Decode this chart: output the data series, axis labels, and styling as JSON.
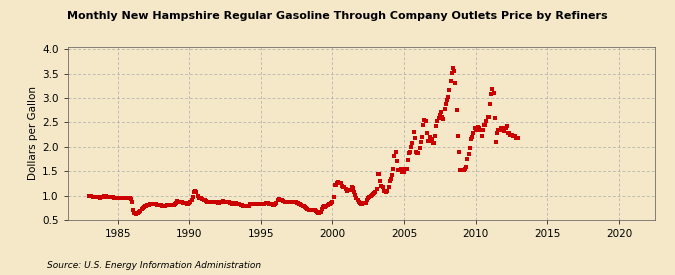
{
  "title": "Monthly New Hampshire Regular Gasoline Through Company Outlets Price by Refiners",
  "ylabel": "Dollars per Gallon",
  "source": "Source: U.S. Energy Information Administration",
  "background_color": "#f5e8c8",
  "marker_color": "#cc0000",
  "xlim": [
    1981.5,
    2022.5
  ],
  "ylim": [
    0.5,
    4.05
  ],
  "xticks": [
    1985,
    1990,
    1995,
    2000,
    2005,
    2010,
    2015,
    2020
  ],
  "yticks": [
    0.5,
    1.0,
    1.5,
    2.0,
    2.5,
    3.0,
    3.5,
    4.0
  ],
  "data": [
    [
      1983.0,
      1.0
    ],
    [
      1983.08,
      0.99
    ],
    [
      1983.17,
      0.99
    ],
    [
      1983.25,
      0.98
    ],
    [
      1983.33,
      0.98
    ],
    [
      1983.42,
      0.97
    ],
    [
      1983.5,
      0.97
    ],
    [
      1983.58,
      0.97
    ],
    [
      1983.67,
      0.97
    ],
    [
      1983.75,
      0.96
    ],
    [
      1983.83,
      0.97
    ],
    [
      1983.92,
      0.98
    ],
    [
      1984.0,
      0.98
    ],
    [
      1984.08,
      0.99
    ],
    [
      1984.17,
      0.99
    ],
    [
      1984.25,
      0.98
    ],
    [
      1984.33,
      0.97
    ],
    [
      1984.42,
      0.97
    ],
    [
      1984.5,
      0.97
    ],
    [
      1984.58,
      0.97
    ],
    [
      1984.67,
      0.97
    ],
    [
      1984.75,
      0.96
    ],
    [
      1984.83,
      0.96
    ],
    [
      1984.92,
      0.96
    ],
    [
      1985.0,
      0.96
    ],
    [
      1985.08,
      0.96
    ],
    [
      1985.17,
      0.96
    ],
    [
      1985.25,
      0.95
    ],
    [
      1985.33,
      0.96
    ],
    [
      1985.42,
      0.96
    ],
    [
      1985.5,
      0.96
    ],
    [
      1985.58,
      0.96
    ],
    [
      1985.67,
      0.95
    ],
    [
      1985.75,
      0.95
    ],
    [
      1985.83,
      0.95
    ],
    [
      1985.92,
      0.94
    ],
    [
      1986.0,
      0.86
    ],
    [
      1986.08,
      0.71
    ],
    [
      1986.17,
      0.65
    ],
    [
      1986.25,
      0.63
    ],
    [
      1986.33,
      0.64
    ],
    [
      1986.42,
      0.65
    ],
    [
      1986.5,
      0.67
    ],
    [
      1986.58,
      0.69
    ],
    [
      1986.67,
      0.72
    ],
    [
      1986.75,
      0.74
    ],
    [
      1986.83,
      0.76
    ],
    [
      1986.92,
      0.78
    ],
    [
      1987.0,
      0.78
    ],
    [
      1987.08,
      0.8
    ],
    [
      1987.17,
      0.81
    ],
    [
      1987.25,
      0.82
    ],
    [
      1987.33,
      0.82
    ],
    [
      1987.42,
      0.83
    ],
    [
      1987.5,
      0.82
    ],
    [
      1987.58,
      0.82
    ],
    [
      1987.67,
      0.82
    ],
    [
      1987.75,
      0.81
    ],
    [
      1987.83,
      0.81
    ],
    [
      1987.92,
      0.81
    ],
    [
      1988.0,
      0.8
    ],
    [
      1988.08,
      0.79
    ],
    [
      1988.17,
      0.79
    ],
    [
      1988.25,
      0.79
    ],
    [
      1988.33,
      0.79
    ],
    [
      1988.42,
      0.8
    ],
    [
      1988.5,
      0.8
    ],
    [
      1988.58,
      0.8
    ],
    [
      1988.67,
      0.8
    ],
    [
      1988.75,
      0.8
    ],
    [
      1988.83,
      0.8
    ],
    [
      1988.92,
      0.8
    ],
    [
      1989.0,
      0.82
    ],
    [
      1989.08,
      0.84
    ],
    [
      1989.17,
      0.88
    ],
    [
      1989.25,
      0.87
    ],
    [
      1989.33,
      0.87
    ],
    [
      1989.42,
      0.87
    ],
    [
      1989.5,
      0.86
    ],
    [
      1989.58,
      0.85
    ],
    [
      1989.67,
      0.84
    ],
    [
      1989.75,
      0.84
    ],
    [
      1989.83,
      0.83
    ],
    [
      1989.92,
      0.83
    ],
    [
      1990.0,
      0.84
    ],
    [
      1990.08,
      0.87
    ],
    [
      1990.17,
      0.92
    ],
    [
      1990.25,
      0.97
    ],
    [
      1990.33,
      1.08
    ],
    [
      1990.42,
      1.1
    ],
    [
      1990.5,
      1.07
    ],
    [
      1990.58,
      0.99
    ],
    [
      1990.67,
      0.96
    ],
    [
      1990.75,
      0.96
    ],
    [
      1990.83,
      0.95
    ],
    [
      1990.92,
      0.94
    ],
    [
      1991.0,
      0.91
    ],
    [
      1991.08,
      0.9
    ],
    [
      1991.17,
      0.88
    ],
    [
      1991.25,
      0.87
    ],
    [
      1991.33,
      0.87
    ],
    [
      1991.42,
      0.87
    ],
    [
      1991.5,
      0.87
    ],
    [
      1991.58,
      0.87
    ],
    [
      1991.67,
      0.87
    ],
    [
      1991.75,
      0.87
    ],
    [
      1991.83,
      0.87
    ],
    [
      1991.92,
      0.86
    ],
    [
      1992.0,
      0.85
    ],
    [
      1992.08,
      0.85
    ],
    [
      1992.17,
      0.86
    ],
    [
      1992.25,
      0.87
    ],
    [
      1992.33,
      0.88
    ],
    [
      1992.42,
      0.87
    ],
    [
      1992.5,
      0.87
    ],
    [
      1992.58,
      0.86
    ],
    [
      1992.67,
      0.86
    ],
    [
      1992.75,
      0.86
    ],
    [
      1992.83,
      0.85
    ],
    [
      1992.92,
      0.84
    ],
    [
      1993.0,
      0.83
    ],
    [
      1993.08,
      0.83
    ],
    [
      1993.17,
      0.84
    ],
    [
      1993.25,
      0.84
    ],
    [
      1993.33,
      0.83
    ],
    [
      1993.42,
      0.82
    ],
    [
      1993.5,
      0.82
    ],
    [
      1993.58,
      0.81
    ],
    [
      1993.67,
      0.8
    ],
    [
      1993.75,
      0.79
    ],
    [
      1993.83,
      0.79
    ],
    [
      1993.92,
      0.79
    ],
    [
      1994.0,
      0.79
    ],
    [
      1994.08,
      0.78
    ],
    [
      1994.17,
      0.79
    ],
    [
      1994.25,
      0.82
    ],
    [
      1994.33,
      0.82
    ],
    [
      1994.42,
      0.82
    ],
    [
      1994.5,
      0.82
    ],
    [
      1994.58,
      0.82
    ],
    [
      1994.67,
      0.82
    ],
    [
      1994.75,
      0.82
    ],
    [
      1994.83,
      0.82
    ],
    [
      1994.92,
      0.82
    ],
    [
      1995.0,
      0.82
    ],
    [
      1995.08,
      0.82
    ],
    [
      1995.17,
      0.82
    ],
    [
      1995.25,
      0.83
    ],
    [
      1995.33,
      0.84
    ],
    [
      1995.42,
      0.84
    ],
    [
      1995.5,
      0.84
    ],
    [
      1995.58,
      0.83
    ],
    [
      1995.67,
      0.82
    ],
    [
      1995.75,
      0.82
    ],
    [
      1995.83,
      0.81
    ],
    [
      1995.92,
      0.8
    ],
    [
      1996.0,
      0.82
    ],
    [
      1996.08,
      0.85
    ],
    [
      1996.17,
      0.9
    ],
    [
      1996.25,
      0.93
    ],
    [
      1996.33,
      0.92
    ],
    [
      1996.42,
      0.91
    ],
    [
      1996.5,
      0.9
    ],
    [
      1996.58,
      0.88
    ],
    [
      1996.67,
      0.87
    ],
    [
      1996.75,
      0.86
    ],
    [
      1996.83,
      0.86
    ],
    [
      1996.92,
      0.86
    ],
    [
      1997.0,
      0.86
    ],
    [
      1997.08,
      0.86
    ],
    [
      1997.17,
      0.86
    ],
    [
      1997.25,
      0.87
    ],
    [
      1997.33,
      0.86
    ],
    [
      1997.42,
      0.86
    ],
    [
      1997.5,
      0.85
    ],
    [
      1997.58,
      0.84
    ],
    [
      1997.67,
      0.83
    ],
    [
      1997.75,
      0.82
    ],
    [
      1997.83,
      0.81
    ],
    [
      1997.92,
      0.79
    ],
    [
      1998.0,
      0.78
    ],
    [
      1998.08,
      0.76
    ],
    [
      1998.17,
      0.74
    ],
    [
      1998.25,
      0.72
    ],
    [
      1998.33,
      0.7
    ],
    [
      1998.42,
      0.71
    ],
    [
      1998.5,
      0.71
    ],
    [
      1998.58,
      0.71
    ],
    [
      1998.67,
      0.7
    ],
    [
      1998.75,
      0.7
    ],
    [
      1998.83,
      0.68
    ],
    [
      1998.92,
      0.66
    ],
    [
      1999.0,
      0.65
    ],
    [
      1999.08,
      0.64
    ],
    [
      1999.17,
      0.67
    ],
    [
      1999.25,
      0.73
    ],
    [
      1999.33,
      0.77
    ],
    [
      1999.42,
      0.78
    ],
    [
      1999.5,
      0.77
    ],
    [
      1999.58,
      0.78
    ],
    [
      1999.67,
      0.8
    ],
    [
      1999.75,
      0.83
    ],
    [
      1999.83,
      0.83
    ],
    [
      1999.92,
      0.84
    ],
    [
      2000.0,
      0.87
    ],
    [
      2000.08,
      0.98
    ],
    [
      2000.17,
      1.22
    ],
    [
      2000.25,
      1.22
    ],
    [
      2000.33,
      1.26
    ],
    [
      2000.42,
      1.27
    ],
    [
      2000.5,
      1.26
    ],
    [
      2000.58,
      1.25
    ],
    [
      2000.67,
      1.2
    ],
    [
      2000.75,
      1.17
    ],
    [
      2000.83,
      1.17
    ],
    [
      2000.92,
      1.14
    ],
    [
      2001.0,
      1.1
    ],
    [
      2001.08,
      1.12
    ],
    [
      2001.17,
      1.12
    ],
    [
      2001.25,
      1.12
    ],
    [
      2001.33,
      1.18
    ],
    [
      2001.42,
      1.15
    ],
    [
      2001.5,
      1.07
    ],
    [
      2001.58,
      1.02
    ],
    [
      2001.67,
      0.96
    ],
    [
      2001.75,
      0.91
    ],
    [
      2001.83,
      0.87
    ],
    [
      2001.92,
      0.84
    ],
    [
      2002.0,
      0.83
    ],
    [
      2002.08,
      0.83
    ],
    [
      2002.17,
      0.85
    ],
    [
      2002.25,
      0.85
    ],
    [
      2002.33,
      0.85
    ],
    [
      2002.42,
      0.92
    ],
    [
      2002.5,
      0.96
    ],
    [
      2002.58,
      0.98
    ],
    [
      2002.67,
      0.99
    ],
    [
      2002.75,
      1.01
    ],
    [
      2002.83,
      1.04
    ],
    [
      2002.92,
      1.05
    ],
    [
      2003.0,
      1.07
    ],
    [
      2003.08,
      1.13
    ],
    [
      2003.17,
      1.44
    ],
    [
      2003.25,
      1.44
    ],
    [
      2003.33,
      1.3
    ],
    [
      2003.42,
      1.2
    ],
    [
      2003.5,
      1.17
    ],
    [
      2003.58,
      1.1
    ],
    [
      2003.67,
      1.1
    ],
    [
      2003.75,
      1.08
    ],
    [
      2003.83,
      1.09
    ],
    [
      2003.92,
      1.18
    ],
    [
      2004.0,
      1.3
    ],
    [
      2004.08,
      1.35
    ],
    [
      2004.17,
      1.42
    ],
    [
      2004.25,
      1.55
    ],
    [
      2004.33,
      1.81
    ],
    [
      2004.42,
      1.9
    ],
    [
      2004.5,
      1.7
    ],
    [
      2004.58,
      1.52
    ],
    [
      2004.67,
      1.52
    ],
    [
      2004.75,
      1.55
    ],
    [
      2004.83,
      1.48
    ],
    [
      2004.92,
      1.48
    ],
    [
      2005.0,
      1.48
    ],
    [
      2005.08,
      1.55
    ],
    [
      2005.17,
      1.55
    ],
    [
      2005.25,
      1.72
    ],
    [
      2005.33,
      1.87
    ],
    [
      2005.42,
      1.9
    ],
    [
      2005.5,
      2.0
    ],
    [
      2005.58,
      2.08
    ],
    [
      2005.67,
      2.3
    ],
    [
      2005.75,
      2.17
    ],
    [
      2005.83,
      1.9
    ],
    [
      2005.92,
      1.87
    ],
    [
      2006.0,
      1.88
    ],
    [
      2006.08,
      1.98
    ],
    [
      2006.17,
      2.1
    ],
    [
      2006.25,
      2.2
    ],
    [
      2006.33,
      2.45
    ],
    [
      2006.42,
      2.55
    ],
    [
      2006.5,
      2.52
    ],
    [
      2006.58,
      2.28
    ],
    [
      2006.67,
      2.12
    ],
    [
      2006.75,
      2.12
    ],
    [
      2006.83,
      2.2
    ],
    [
      2006.92,
      2.15
    ],
    [
      2007.0,
      2.08
    ],
    [
      2007.08,
      2.08
    ],
    [
      2007.17,
      2.22
    ],
    [
      2007.25,
      2.42
    ],
    [
      2007.33,
      2.52
    ],
    [
      2007.42,
      2.6
    ],
    [
      2007.5,
      2.65
    ],
    [
      2007.58,
      2.72
    ],
    [
      2007.67,
      2.62
    ],
    [
      2007.75,
      2.56
    ],
    [
      2007.83,
      2.78
    ],
    [
      2007.92,
      2.88
    ],
    [
      2008.0,
      2.96
    ],
    [
      2008.08,
      3.02
    ],
    [
      2008.17,
      3.17
    ],
    [
      2008.25,
      3.35
    ],
    [
      2008.33,
      3.52
    ],
    [
      2008.42,
      3.62
    ],
    [
      2008.5,
      3.55
    ],
    [
      2008.58,
      3.3
    ],
    [
      2008.67,
      2.75
    ],
    [
      2008.75,
      2.22
    ],
    [
      2008.83,
      1.9
    ],
    [
      2008.92,
      1.52
    ],
    [
      2009.0,
      1.52
    ],
    [
      2009.08,
      1.52
    ],
    [
      2009.17,
      1.52
    ],
    [
      2009.25,
      1.55
    ],
    [
      2009.33,
      1.58
    ],
    [
      2009.42,
      1.75
    ],
    [
      2009.5,
      1.85
    ],
    [
      2009.58,
      1.98
    ],
    [
      2009.67,
      2.15
    ],
    [
      2009.75,
      2.2
    ],
    [
      2009.83,
      2.28
    ],
    [
      2009.92,
      2.38
    ],
    [
      2010.0,
      2.35
    ],
    [
      2010.08,
      2.35
    ],
    [
      2010.17,
      2.4
    ],
    [
      2010.25,
      2.38
    ],
    [
      2010.33,
      2.35
    ],
    [
      2010.42,
      2.22
    ],
    [
      2010.5,
      2.35
    ],
    [
      2010.58,
      2.45
    ],
    [
      2010.67,
      2.45
    ],
    [
      2010.75,
      2.52
    ],
    [
      2010.83,
      2.62
    ],
    [
      2010.92,
      2.62
    ],
    [
      2011.0,
      2.88
    ],
    [
      2011.08,
      3.08
    ],
    [
      2011.17,
      3.18
    ],
    [
      2011.25,
      3.1
    ],
    [
      2011.33,
      2.58
    ],
    [
      2011.42,
      2.1
    ],
    [
      2011.5,
      2.28
    ],
    [
      2011.58,
      2.35
    ],
    [
      2011.67,
      2.35
    ],
    [
      2011.75,
      2.38
    ],
    [
      2011.83,
      2.38
    ],
    [
      2011.92,
      2.38
    ],
    [
      2012.0,
      2.32
    ],
    [
      2012.08,
      2.38
    ],
    [
      2012.17,
      2.42
    ],
    [
      2012.25,
      2.28
    ],
    [
      2012.33,
      2.28
    ],
    [
      2012.42,
      2.25
    ],
    [
      2012.5,
      2.25
    ],
    [
      2012.58,
      2.22
    ],
    [
      2012.67,
      2.22
    ],
    [
      2012.75,
      2.22
    ],
    [
      2012.83,
      2.18
    ],
    [
      2012.92,
      2.18
    ]
  ]
}
